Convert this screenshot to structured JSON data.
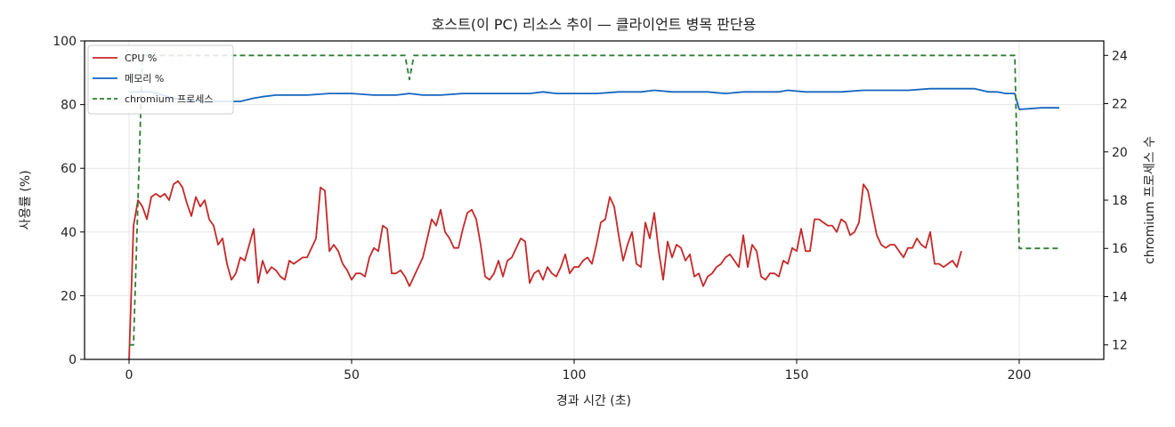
{
  "chart_data": {
    "type": "line",
    "title": "호스트(이 PC) 리소스 추이 — 클라이언트 병목 판단용",
    "xlabel": "경과 시간 (초)",
    "ylabel": "사용률 (%)",
    "y2label": "chromium 프로세스 수",
    "xlim": [
      -10,
      219
    ],
    "ylim": [
      0,
      100
    ],
    "y2lim": [
      11.4,
      24.6
    ],
    "x_ticks": [
      0,
      50,
      100,
      150,
      200
    ],
    "y_ticks": [
      0,
      20,
      40,
      60,
      80,
      100
    ],
    "y2_ticks": [
      12,
      14,
      16,
      18,
      20,
      22,
      24
    ],
    "grid": true,
    "legend_position": "top-left",
    "series": [
      {
        "name": "CPU %",
        "axis": "left",
        "style": "solid",
        "color": "#c62828",
        "points": [
          [
            0,
            0
          ],
          [
            1,
            42
          ],
          [
            2,
            50
          ],
          [
            3,
            48
          ],
          [
            4,
            44
          ],
          [
            5,
            51
          ],
          [
            6,
            52
          ],
          [
            7,
            51
          ],
          [
            8,
            52
          ],
          [
            9,
            50
          ],
          [
            10,
            55
          ],
          [
            11,
            56
          ],
          [
            12,
            54
          ],
          [
            13,
            49
          ],
          [
            14,
            45
          ],
          [
            15,
            51
          ],
          [
            16,
            48
          ],
          [
            17,
            50
          ],
          [
            18,
            44
          ],
          [
            19,
            42
          ],
          [
            20,
            36
          ],
          [
            21,
            38
          ],
          [
            22,
            30
          ],
          [
            23,
            25
          ],
          [
            24,
            27
          ],
          [
            25,
            32
          ],
          [
            26,
            31
          ],
          [
            27,
            36
          ],
          [
            28,
            41
          ],
          [
            29,
            24
          ],
          [
            30,
            31
          ],
          [
            31,
            27
          ],
          [
            32,
            29
          ],
          [
            33,
            28
          ],
          [
            34,
            26
          ],
          [
            35,
            25
          ],
          [
            36,
            31
          ],
          [
            37,
            30
          ],
          [
            38,
            31
          ],
          [
            39,
            32
          ],
          [
            40,
            32
          ],
          [
            41,
            35
          ],
          [
            42,
            38
          ],
          [
            43,
            54
          ],
          [
            44,
            53
          ],
          [
            45,
            34
          ],
          [
            46,
            36
          ],
          [
            47,
            34
          ],
          [
            48,
            30
          ],
          [
            49,
            28
          ],
          [
            50,
            25
          ],
          [
            51,
            27
          ],
          [
            52,
            27
          ],
          [
            53,
            26
          ],
          [
            54,
            32
          ],
          [
            55,
            35
          ],
          [
            56,
            34
          ],
          [
            57,
            42
          ],
          [
            58,
            41
          ],
          [
            59,
            27
          ],
          [
            60,
            27
          ],
          [
            61,
            28
          ],
          [
            62,
            26
          ],
          [
            63,
            23
          ],
          [
            64,
            26
          ],
          [
            65,
            29
          ],
          [
            66,
            32
          ],
          [
            67,
            38
          ],
          [
            68,
            44
          ],
          [
            69,
            42
          ],
          [
            70,
            47
          ],
          [
            71,
            40
          ],
          [
            72,
            38
          ],
          [
            73,
            35
          ],
          [
            74,
            35
          ],
          [
            75,
            41
          ],
          [
            76,
            46
          ],
          [
            77,
            47
          ],
          [
            78,
            44
          ],
          [
            79,
            36
          ],
          [
            80,
            26
          ],
          [
            81,
            25
          ],
          [
            82,
            27
          ],
          [
            83,
            31
          ],
          [
            84,
            26
          ],
          [
            85,
            31
          ],
          [
            86,
            32
          ],
          [
            87,
            35
          ],
          [
            88,
            38
          ],
          [
            89,
            37
          ],
          [
            90,
            24
          ],
          [
            91,
            27
          ],
          [
            92,
            28
          ],
          [
            93,
            25
          ],
          [
            94,
            29
          ],
          [
            95,
            27
          ],
          [
            96,
            26
          ],
          [
            97,
            29
          ],
          [
            98,
            33
          ],
          [
            99,
            27
          ],
          [
            100,
            29
          ],
          [
            101,
            29
          ],
          [
            102,
            31
          ],
          [
            103,
            32
          ],
          [
            104,
            30
          ],
          [
            105,
            36
          ],
          [
            106,
            43
          ],
          [
            107,
            44
          ],
          [
            108,
            51
          ],
          [
            109,
            48
          ],
          [
            110,
            39
          ],
          [
            111,
            31
          ],
          [
            112,
            36
          ],
          [
            113,
            40
          ],
          [
            114,
            30
          ],
          [
            115,
            29
          ],
          [
            116,
            43
          ],
          [
            117,
            38
          ],
          [
            118,
            46
          ],
          [
            119,
            34
          ],
          [
            120,
            25
          ],
          [
            121,
            37
          ],
          [
            122,
            32
          ],
          [
            123,
            36
          ],
          [
            124,
            35
          ],
          [
            125,
            31
          ],
          [
            126,
            33
          ],
          [
            127,
            26
          ],
          [
            128,
            27
          ],
          [
            129,
            23
          ],
          [
            130,
            26
          ],
          [
            131,
            27
          ],
          [
            132,
            29
          ],
          [
            133,
            30
          ],
          [
            134,
            32
          ],
          [
            135,
            33
          ],
          [
            136,
            31
          ],
          [
            137,
            29
          ],
          [
            138,
            39
          ],
          [
            139,
            29
          ],
          [
            140,
            36
          ],
          [
            141,
            34
          ],
          [
            142,
            26
          ],
          [
            143,
            25
          ],
          [
            144,
            27
          ],
          [
            145,
            27
          ],
          [
            146,
            26
          ],
          [
            147,
            31
          ],
          [
            148,
            30
          ],
          [
            149,
            35
          ],
          [
            150,
            34
          ],
          [
            151,
            41
          ],
          [
            152,
            34
          ],
          [
            153,
            34
          ],
          [
            154,
            44
          ],
          [
            155,
            44
          ],
          [
            156,
            43
          ],
          [
            157,
            42
          ],
          [
            158,
            42
          ],
          [
            159,
            40
          ],
          [
            160,
            44
          ],
          [
            161,
            43
          ],
          [
            162,
            39
          ],
          [
            163,
            40
          ],
          [
            164,
            43
          ],
          [
            165,
            55
          ],
          [
            166,
            53
          ],
          [
            167,
            46
          ],
          [
            168,
            39
          ],
          [
            169,
            36
          ],
          [
            170,
            35
          ],
          [
            171,
            36
          ],
          [
            172,
            36
          ],
          [
            173,
            34
          ],
          [
            174,
            32
          ],
          [
            175,
            35
          ],
          [
            176,
            35
          ],
          [
            177,
            38
          ],
          [
            178,
            36
          ],
          [
            179,
            35
          ],
          [
            180,
            40
          ],
          [
            181,
            30
          ],
          [
            182,
            30
          ],
          [
            183,
            29
          ],
          [
            184,
            30
          ],
          [
            185,
            31
          ],
          [
            186,
            29
          ],
          [
            187,
            34
          ]
        ]
      },
      {
        "name": "메모리 %",
        "axis": "left",
        "style": "solid",
        "color": "#1565c0",
        "points": [
          [
            0,
            84
          ],
          [
            5,
            84
          ],
          [
            10,
            82
          ],
          [
            15,
            81
          ],
          [
            20,
            81
          ],
          [
            25,
            81
          ],
          [
            28,
            82
          ],
          [
            30,
            82.5
          ],
          [
            33,
            83
          ],
          [
            40,
            83
          ],
          [
            45,
            83.5
          ],
          [
            50,
            83.5
          ],
          [
            55,
            83
          ],
          [
            60,
            83
          ],
          [
            63,
            83.5
          ],
          [
            66,
            83
          ],
          [
            70,
            83
          ],
          [
            75,
            83.5
          ],
          [
            80,
            83.5
          ],
          [
            85,
            83.5
          ],
          [
            90,
            83.5
          ],
          [
            93,
            84
          ],
          [
            96,
            83.5
          ],
          [
            100,
            83.5
          ],
          [
            105,
            83.5
          ],
          [
            110,
            84
          ],
          [
            115,
            84
          ],
          [
            118,
            84.5
          ],
          [
            122,
            84
          ],
          [
            126,
            84
          ],
          [
            130,
            84
          ],
          [
            134,
            83.5
          ],
          [
            138,
            84
          ],
          [
            142,
            84
          ],
          [
            146,
            84
          ],
          [
            148,
            84.5
          ],
          [
            152,
            84
          ],
          [
            156,
            84
          ],
          [
            160,
            84
          ],
          [
            165,
            84.5
          ],
          [
            170,
            84.5
          ],
          [
            175,
            84.5
          ],
          [
            180,
            85
          ],
          [
            185,
            85
          ],
          [
            190,
            85
          ],
          [
            193,
            84
          ],
          [
            195,
            84
          ],
          [
            197,
            83.5
          ],
          [
            199,
            83.5
          ],
          [
            200,
            78.5
          ],
          [
            205,
            79
          ],
          [
            209,
            79
          ]
        ]
      },
      {
        "name": "chromium 프로세스",
        "axis": "right",
        "style": "dashed",
        "color": "#2e7d32",
        "points": [
          [
            0,
            12
          ],
          [
            1,
            12
          ],
          [
            2,
            18
          ],
          [
            3,
            24
          ],
          [
            62,
            24
          ],
          [
            63,
            23
          ],
          [
            64,
            24
          ],
          [
            199,
            24
          ],
          [
            200,
            16
          ],
          [
            209,
            16
          ]
        ]
      }
    ]
  }
}
